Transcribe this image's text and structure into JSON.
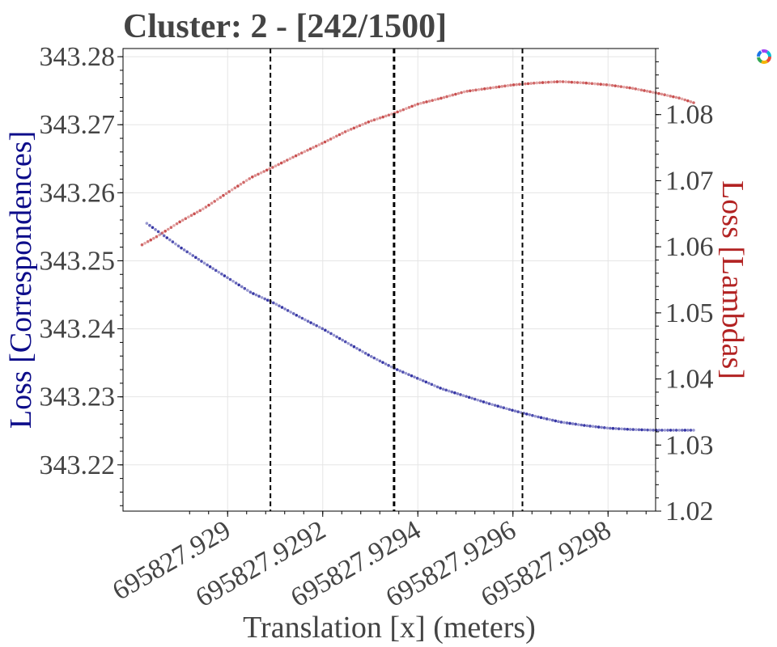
{
  "chart_data": {
    "type": "scatter",
    "title": "Cluster: 2 - [242/1500]",
    "xlabel": "Translation [x] (meters)",
    "ylabel_left": "Loss [Correspondences]",
    "ylabel_right": "Loss [Lambdas]",
    "xlim": [
      695827.92878,
      695827.9299
    ],
    "ylim_left": [
      343.2132,
      343.2812
    ],
    "ylim_right": [
      1.02,
      1.09
    ],
    "x_ticks": [
      695827.929,
      695827.9292,
      695827.9294,
      695827.9296,
      695827.9298
    ],
    "x_tick_labels": [
      "695827.929",
      "695827.9292",
      "695827.9294",
      "695827.9296",
      "695827.9298"
    ],
    "y_left_ticks": [
      343.22,
      343.23,
      343.24,
      343.25,
      343.26,
      343.27,
      343.28
    ],
    "y_left_tick_labels": [
      "343.22",
      "343.23",
      "343.24",
      "343.25",
      "343.26",
      "343.27",
      "343.28"
    ],
    "y_right_ticks": [
      1.02,
      1.03,
      1.04,
      1.05,
      1.06,
      1.07,
      1.08
    ],
    "y_right_tick_labels": [
      "1.02",
      "1.03",
      "1.04",
      "1.05",
      "1.06",
      "1.07",
      "1.08"
    ],
    "vlines": [
      {
        "x": 695827.92909,
        "style": "dashed",
        "width": "normal"
      },
      {
        "x": 695827.92935,
        "style": "dashed",
        "width": "bold"
      },
      {
        "x": 695827.92962,
        "style": "dashed",
        "width": "normal"
      }
    ],
    "grid": true,
    "series": [
      {
        "axis": "left",
        "color": "#1f1f9a",
        "points": [
          [
            695827.92883,
            343.2555
          ],
          [
            695827.92886,
            343.254
          ],
          [
            695827.9289,
            343.252
          ],
          [
            695827.92895,
            343.2497
          ],
          [
            695827.929,
            343.2475
          ],
          [
            695827.92905,
            343.2453
          ],
          [
            695827.9291,
            343.2437
          ],
          [
            695827.92915,
            343.2418
          ],
          [
            695827.9292,
            343.24
          ],
          [
            695827.92925,
            343.238
          ],
          [
            695827.9293,
            343.236
          ],
          [
            695827.92935,
            343.2342
          ],
          [
            695827.9294,
            343.2327
          ],
          [
            695827.92945,
            343.2312
          ],
          [
            695827.9295,
            343.2301
          ],
          [
            695827.92955,
            343.229
          ],
          [
            695827.9296,
            343.228
          ],
          [
            695827.92965,
            343.2271
          ],
          [
            695827.9297,
            343.2263
          ],
          [
            695827.92975,
            343.2258
          ],
          [
            695827.9298,
            343.2254
          ],
          [
            695827.92985,
            343.2252
          ],
          [
            695827.9299,
            343.2251
          ],
          [
            695827.92995,
            343.2251
          ],
          [
            695827.92998,
            343.2251
          ]
        ]
      },
      {
        "axis": "right",
        "color": "#c23b3b",
        "points": [
          [
            695827.92882,
            1.0603
          ],
          [
            695827.92885,
            1.0615
          ],
          [
            695827.9289,
            1.0638
          ],
          [
            695827.92895,
            1.0658
          ],
          [
            695827.929,
            1.0682
          ],
          [
            695827.92905,
            1.0705
          ],
          [
            695827.9291,
            1.0722
          ],
          [
            695827.92915,
            1.074
          ],
          [
            695827.9292,
            1.0757
          ],
          [
            695827.92925,
            1.0775
          ],
          [
            695827.9293,
            1.079
          ],
          [
            695827.92935,
            1.0802
          ],
          [
            695827.9294,
            1.0816
          ],
          [
            695827.92945,
            1.0825
          ],
          [
            695827.9295,
            1.0835
          ],
          [
            695827.92955,
            1.084
          ],
          [
            695827.9296,
            1.0845
          ],
          [
            695827.92965,
            1.0848
          ],
          [
            695827.9297,
            1.085
          ],
          [
            695827.92975,
            1.0848
          ],
          [
            695827.9298,
            1.0845
          ],
          [
            695827.92985,
            1.084
          ],
          [
            695827.9299,
            1.0833
          ],
          [
            695827.92995,
            1.0825
          ],
          [
            695827.92998,
            1.0818
          ]
        ]
      }
    ]
  }
}
